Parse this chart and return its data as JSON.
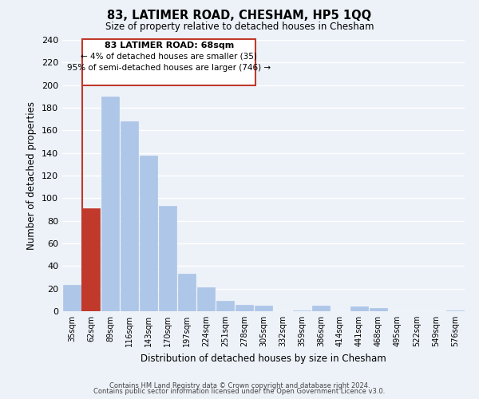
{
  "title": "83, LATIMER ROAD, CHESHAM, HP5 1QQ",
  "subtitle": "Size of property relative to detached houses in Chesham",
  "xlabel": "Distribution of detached houses by size in Chesham",
  "ylabel": "Number of detached properties",
  "bar_labels": [
    "35sqm",
    "62sqm",
    "89sqm",
    "116sqm",
    "143sqm",
    "170sqm",
    "197sqm",
    "224sqm",
    "251sqm",
    "278sqm",
    "305sqm",
    "332sqm",
    "359sqm",
    "386sqm",
    "414sqm",
    "441sqm",
    "468sqm",
    "495sqm",
    "522sqm",
    "549sqm",
    "576sqm"
  ],
  "bar_values": [
    23,
    91,
    190,
    168,
    138,
    93,
    33,
    21,
    9,
    6,
    5,
    0,
    1,
    5,
    0,
    4,
    3,
    0,
    0,
    0,
    1
  ],
  "bar_color": "#aec6e8",
  "highlight_bar_index": 1,
  "highlight_bar_color": "#c0392b",
  "highlight_line_color": "#c0392b",
  "ylim": [
    0,
    240
  ],
  "yticks": [
    0,
    20,
    40,
    60,
    80,
    100,
    120,
    140,
    160,
    180,
    200,
    220,
    240
  ],
  "annotation_title": "83 LATIMER ROAD: 68sqm",
  "annotation_line1": "← 4% of detached houses are smaller (35)",
  "annotation_line2": "95% of semi-detached houses are larger (746) →",
  "annotation_box_color": "#ffffff",
  "annotation_box_edge": "#c0392b",
  "footer_line1": "Contains HM Land Registry data © Crown copyright and database right 2024.",
  "footer_line2": "Contains public sector information licensed under the Open Government Licence v3.0.",
  "bg_color": "#edf2f9",
  "grid_color": "#ffffff"
}
